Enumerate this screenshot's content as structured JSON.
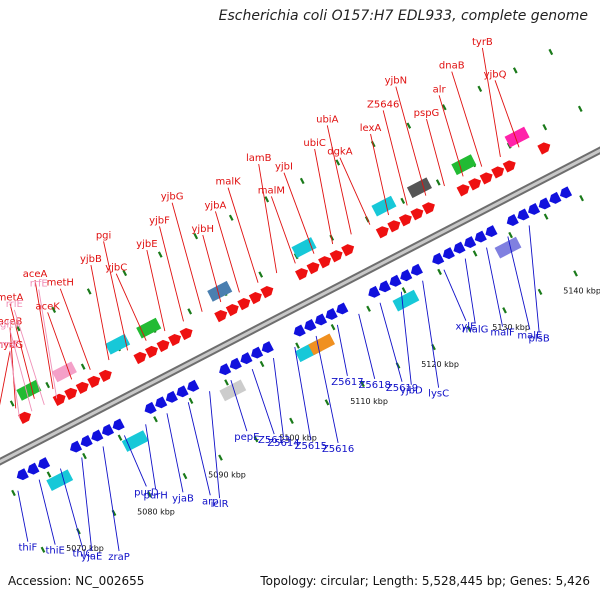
{
  "title": "Escherichia coli O157:H7 EDL933, complete genome",
  "footer": {
    "accession": "Accession: NC_002655",
    "summary": "Topology: circular; Length: 5,528,445 bp; Genes: 5,426"
  },
  "colors": {
    "backbone": "#8c8c8c",
    "forward_label": "#e01010",
    "reverse_label": "#1010c8",
    "rna_label": "#f090b8",
    "ticks": "#1a7a1a",
    "forward_gene": "#ee1111",
    "reverse_gene": "#1111dd",
    "rrna": "#f4a0c8",
    "ortholog_cyan": "#17c8d8",
    "ortholog_steel": "#4a7fb0",
    "ortholog_green": "#22bb33"
  },
  "kbp_ticks": [
    "5070 kbp",
    "5080 kbp",
    "5090 kbp",
    "5100 kbp",
    "5110 kbp",
    "5120 kbp",
    "5130 kbp",
    "5140 kbp"
  ],
  "forward_labels": [
    "hydG",
    "aceB",
    "metA",
    "aceA",
    "aceK",
    "metH",
    "yjbB",
    "pgi",
    "yjbC",
    "yjbE",
    "yjbF",
    "yjbG",
    "yjbH",
    "yjbA",
    "malK",
    "lamB",
    "malM",
    "yjbI",
    "ubiC",
    "ubiA",
    "dgkA",
    "lexA",
    "Z5646",
    "yjbN",
    "pspG",
    "alr",
    "dnaB",
    "tyrB",
    "yjbQ"
  ],
  "rna_labels": [
    "rrsE",
    "gltV",
    "rrlE",
    "rrfE"
  ],
  "reverse_labels": [
    "thiF",
    "thiE",
    "thiC",
    "yjaE",
    "zraP",
    "purD",
    "purH",
    "yjaB",
    "arp",
    "iclR",
    "pepE",
    "Z5613",
    "Z5614",
    "Z5615",
    "Z5616",
    "Z5617",
    "Z5618",
    "Z5619",
    "yjbD",
    "lysC",
    "xylE",
    "malG",
    "malF",
    "malE",
    "plsB"
  ]
}
